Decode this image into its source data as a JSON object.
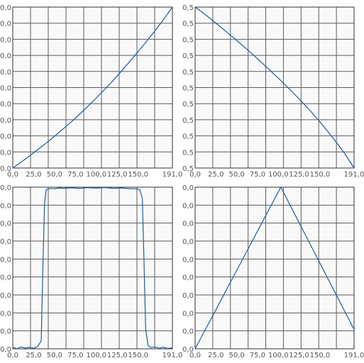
{
  "colors": {
    "background": "#ffffff",
    "plot_area": "#f9f9f9",
    "grid": "#5c5c5c",
    "frame": "#333333",
    "line": "#1f5b9e",
    "tick_text": "#555555"
  },
  "chart_data": [
    {
      "type": "line",
      "grid": true,
      "x_ticks": [
        "0,0",
        "25,0",
        "50,0",
        "75,0",
        "100,0",
        "125,0",
        "150,0",
        "191,0"
      ],
      "y_ticks": [
        "0,0",
        "0,0",
        "0,0",
        "0,0",
        "0,0",
        "0,0",
        "0,0",
        "0,0",
        "0,0",
        "0,0",
        "0,0"
      ],
      "xlim": [
        0,
        191
      ],
      "ylim": [
        0,
        1
      ],
      "series": [
        {
          "x": [
            0,
            10,
            20,
            30,
            40,
            50,
            60,
            70,
            80,
            90,
            100,
            110,
            120,
            130,
            140,
            150,
            160,
            170,
            180,
            191
          ],
          "y": [
            0.0,
            0.037,
            0.075,
            0.115,
            0.155,
            0.198,
            0.242,
            0.287,
            0.335,
            0.384,
            0.436,
            0.489,
            0.543,
            0.602,
            0.662,
            0.724,
            0.787,
            0.852,
            0.92,
            1.0
          ]
        }
      ]
    },
    {
      "type": "line",
      "grid": true,
      "x_ticks": [
        "0,0",
        "25,0",
        "50,0",
        "75,0",
        "100,0",
        "125,0",
        "150,0",
        "191,0"
      ],
      "y_ticks": [
        "0,5",
        "0,5",
        "0,5",
        "0,5",
        "0,5",
        "0,5",
        "0,5",
        "0,5",
        "0,5",
        "0,5",
        "0,5"
      ],
      "xlim": [
        0,
        191
      ],
      "ylim": [
        0,
        1
      ],
      "series": [
        {
          "x": [
            0,
            10,
            20,
            30,
            40,
            50,
            60,
            70,
            80,
            90,
            100,
            110,
            120,
            130,
            140,
            150,
            160,
            170,
            180,
            191
          ],
          "y": [
            1.0,
            0.962,
            0.921,
            0.879,
            0.836,
            0.793,
            0.748,
            0.702,
            0.655,
            0.607,
            0.558,
            0.508,
            0.456,
            0.402,
            0.346,
            0.287,
            0.224,
            0.158,
            0.088,
            0.0
          ]
        }
      ]
    },
    {
      "type": "line",
      "grid": true,
      "x_ticks": [
        "0,0",
        "25,0",
        "50,0",
        "75,0",
        "100,0",
        "125,0",
        "150,0",
        "191,0"
      ],
      "y_ticks": [
        "0,0",
        "0,0",
        "0,0",
        "0,0",
        "0,0",
        "0,0",
        "0,0",
        "0,0",
        "0,0",
        "0,0"
      ],
      "xlim": [
        0,
        191
      ],
      "ylim": [
        0,
        1
      ],
      "series": [
        {
          "x": [
            0,
            5,
            10,
            15,
            20,
            25,
            30,
            34,
            36,
            38,
            40,
            45,
            50,
            55,
            60,
            70,
            80,
            90,
            100,
            110,
            120,
            130,
            140,
            148,
            152,
            155,
            157,
            159,
            162,
            165,
            170,
            175,
            180,
            185,
            191
          ],
          "y": [
            0.01,
            0.0,
            0.012,
            0.004,
            0.009,
            0.003,
            0.015,
            0.05,
            0.5,
            0.9,
            0.985,
            0.992,
            0.99,
            0.995,
            0.993,
            0.996,
            0.992,
            0.997,
            0.994,
            0.998,
            0.993,
            0.995,
            0.991,
            0.99,
            0.985,
            0.93,
            0.55,
            0.12,
            0.02,
            0.008,
            0.012,
            0.003,
            0.01,
            0.002,
            0.006
          ]
        }
      ]
    },
    {
      "type": "line",
      "grid": true,
      "x_ticks": [
        "0,0",
        "25,0",
        "50,0",
        "75,0",
        "100,0",
        "125,0",
        "150,0",
        "191,0"
      ],
      "y_ticks": [
        "0,0",
        "0,0",
        "0,0",
        "0,0",
        "0,0",
        "0,0",
        "0,0",
        "0,0",
        "0,0",
        "0,0"
      ],
      "xlim": [
        0,
        191
      ],
      "ylim": [
        0,
        1
      ],
      "series": [
        {
          "x": [
            0,
            10,
            20,
            30,
            40,
            50,
            60,
            70,
            80,
            90,
            100,
            103,
            110,
            120,
            130,
            140,
            150,
            160,
            170,
            180,
            188,
            191
          ],
          "y": [
            0.0,
            0.097,
            0.194,
            0.291,
            0.388,
            0.485,
            0.583,
            0.68,
            0.777,
            0.874,
            0.971,
            1.0,
            0.93,
            0.83,
            0.73,
            0.63,
            0.53,
            0.43,
            0.33,
            0.23,
            0.15,
            0.12
          ]
        }
      ]
    }
  ]
}
